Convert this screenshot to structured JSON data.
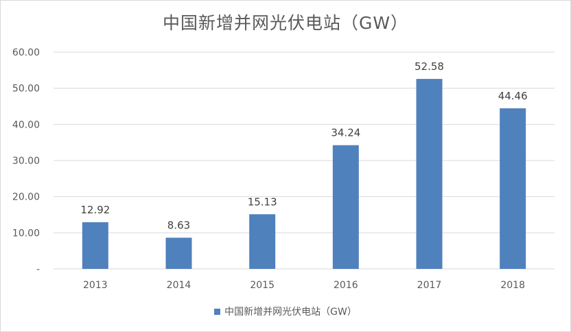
{
  "chart_data": {
    "type": "bar",
    "title": "中国新增并网光伏电站（GW）",
    "categories": [
      "2013",
      "2014",
      "2015",
      "2016",
      "2017",
      "2018"
    ],
    "series": [
      {
        "name": "中国新增并网光伏电站（GW）",
        "values": [
          12.92,
          8.63,
          15.13,
          34.24,
          52.58,
          44.46
        ],
        "labels": [
          "12.92",
          "8.63",
          "15.13",
          "34.24",
          "52.58",
          "44.46"
        ]
      }
    ],
    "yticks": [
      0,
      10,
      20,
      30,
      40,
      50,
      60
    ],
    "ytick_labels": [
      "-",
      "10.00",
      "20.00",
      "30.00",
      "40.00",
      "50.00",
      "60.00"
    ],
    "ylim": [
      0,
      60
    ],
    "xlabel": "",
    "ylabel": "",
    "grid": true,
    "legend_position": "bottom"
  },
  "colors": {
    "bar": "#4f81bd",
    "grid": "#d9d9d9",
    "text": "#595959",
    "label": "#404040"
  }
}
